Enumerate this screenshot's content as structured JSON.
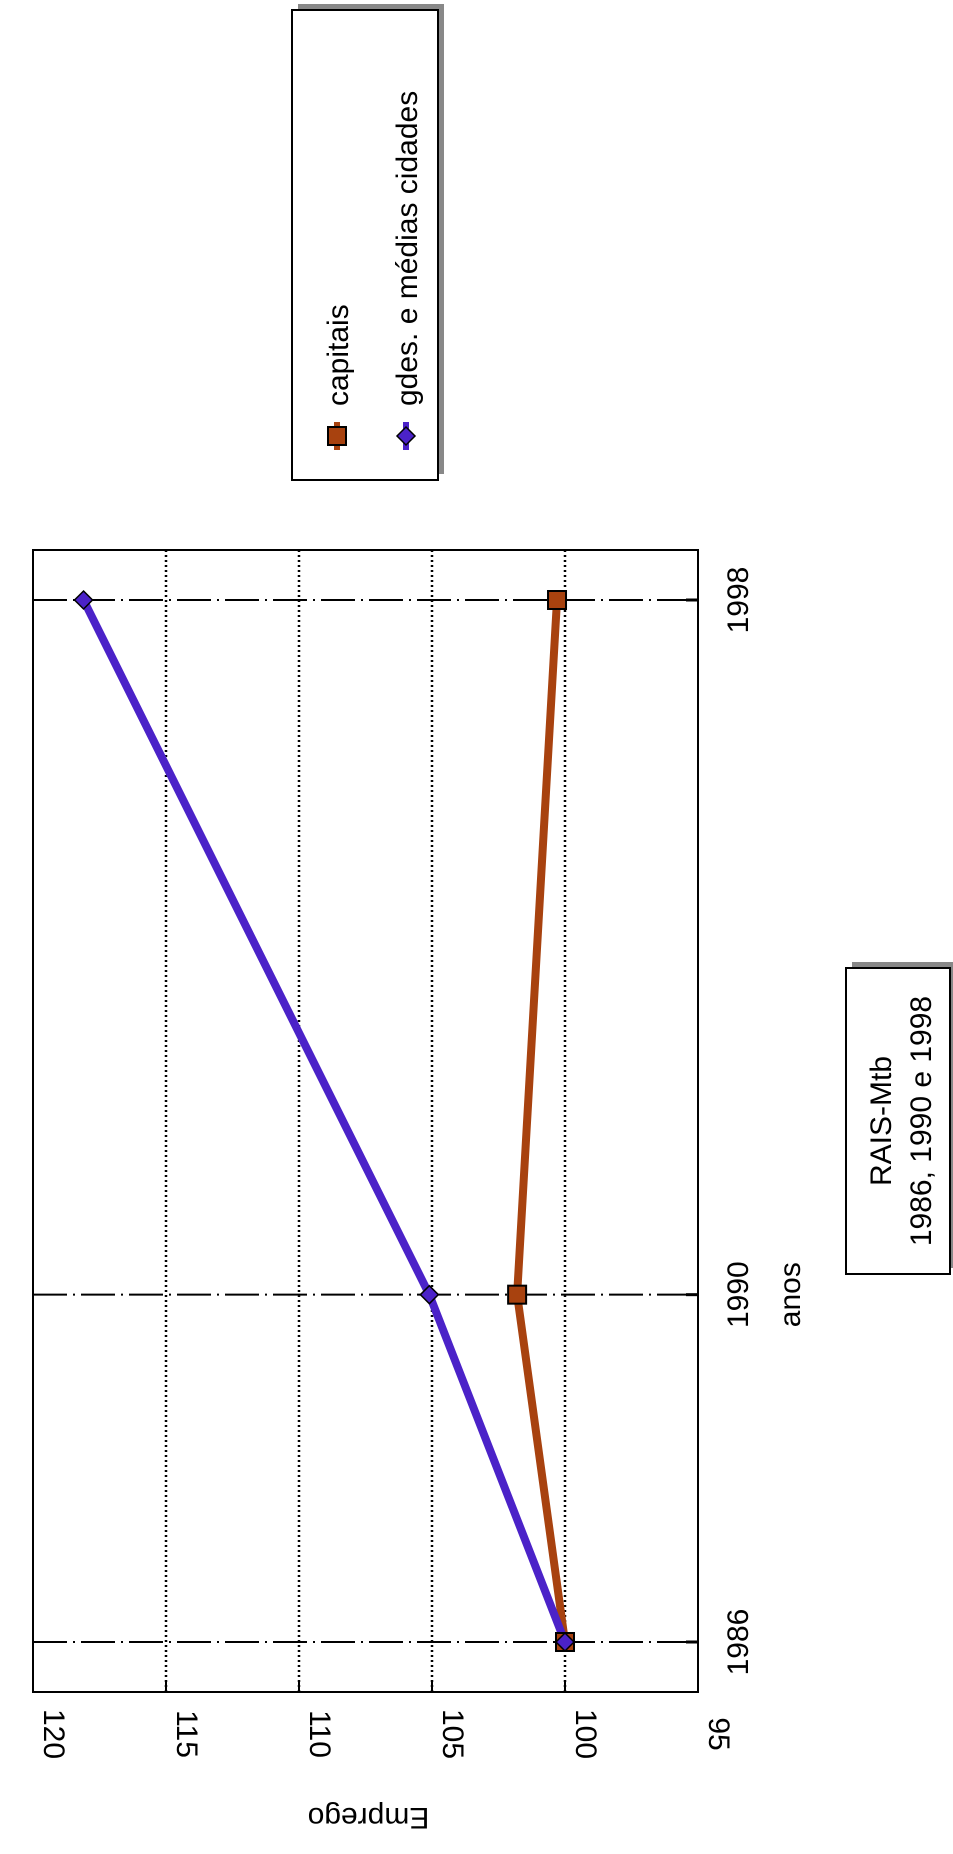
{
  "chart_data": {
    "type": "line",
    "orientation": "rotated 90 degrees clockwise",
    "categories": [
      "1986",
      "1990",
      "1998"
    ],
    "x": [
      1986,
      1990,
      1998
    ],
    "series": [
      {
        "name": "capitais",
        "values": [
          100,
          101.8,
          100.3
        ],
        "color": "#a8420f",
        "marker": "square"
      },
      {
        "name": "gdes. e médias cidades",
        "values": [
          100,
          105.1,
          118.1
        ],
        "color": "#4b22c8",
        "marker": "diamond"
      }
    ],
    "xlabel": "anos",
    "ylabel": "Emprego",
    "ylim": [
      95,
      120
    ],
    "yticks": [
      "95",
      "100",
      "105",
      "110",
      "115",
      "120"
    ],
    "grid": true,
    "legend_position": "top-right",
    "source_note": [
      "RAIS-Mtb",
      "1986, 1990 e 1998"
    ]
  }
}
